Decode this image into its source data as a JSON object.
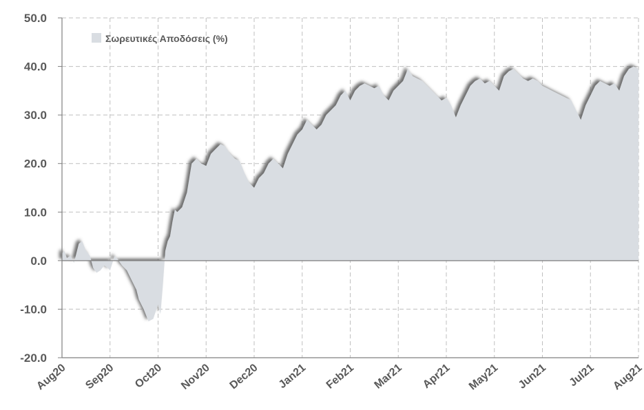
{
  "chart_data": {
    "type": "area",
    "title": "",
    "xlabel": "",
    "ylabel": "",
    "ylim": [
      -20,
      50
    ],
    "y_ticks": [
      "50.0",
      "40.0",
      "30.0",
      "20.0",
      "10.0",
      "0.0",
      "-10.0",
      "-20.0"
    ],
    "x_ticks": [
      "Aug20",
      "Sep20",
      "Oct20",
      "Nov20",
      "Dec20",
      "Jan21",
      "Feb21",
      "Mar21",
      "Apr21",
      "May21",
      "Jun21",
      "Jul21",
      "Aug21"
    ],
    "grid": true,
    "legend_position": "top-left",
    "series": [
      {
        "name": "Σωρευτικές Αποδόσεις (%)",
        "color": "#d9dde2",
        "shadow_color": "#6e6e6e",
        "x": [
          0,
          0.05,
          0.1,
          0.18,
          0.25,
          0.3,
          0.35,
          0.42,
          0.5,
          0.58,
          0.65,
          0.72,
          0.8,
          0.88,
          0.95,
          1.0,
          1.05,
          1.1,
          1.18,
          1.25,
          1.35,
          1.45,
          1.55,
          1.6,
          1.7,
          1.8,
          1.9,
          1.95,
          2.0,
          2.05,
          2.1,
          2.15,
          2.2,
          2.25,
          2.3,
          2.35,
          2.4,
          2.5,
          2.6,
          2.7,
          2.8,
          2.9,
          3.0,
          3.1,
          3.2,
          3.3,
          3.4,
          3.5,
          3.6,
          3.7,
          3.8,
          3.9,
          4.0,
          4.1,
          4.2,
          4.3,
          4.4,
          4.5,
          4.6,
          4.7,
          4.8,
          4.9,
          5.0,
          5.1,
          5.2,
          5.3,
          5.4,
          5.5,
          5.6,
          5.7,
          5.8,
          5.9,
          6.0,
          6.1,
          6.2,
          6.3,
          6.4,
          6.5,
          6.6,
          6.7,
          6.8,
          6.9,
          7.0,
          7.1,
          7.2,
          7.3,
          7.4,
          7.5,
          7.6,
          7.7,
          7.8,
          7.9,
          8.0,
          8.1,
          8.2,
          8.3,
          8.4,
          8.5,
          8.6,
          8.7,
          8.8,
          8.9,
          9.0,
          9.1,
          9.2,
          9.3,
          9.4,
          9.5,
          9.6,
          9.7,
          9.8,
          9.9,
          10.0,
          10.1,
          10.2,
          10.3,
          10.4,
          10.5,
          10.6,
          10.7,
          10.8,
          10.9,
          11.0,
          11.1,
          11.2,
          11.3,
          11.4,
          11.5,
          11.6,
          11.7,
          11.8,
          11.9,
          12.0
        ],
        "values": [
          1.5,
          2.0,
          0.5,
          1.0,
          -0.5,
          1.5,
          3.5,
          4.0,
          2.0,
          1.0,
          -1.5,
          -2.5,
          -2.0,
          -1.0,
          -1.5,
          -2.0,
          -0.5,
          1.0,
          0.0,
          -1.0,
          -2.0,
          -4.0,
          -6.0,
          -8.0,
          -10.0,
          -12.5,
          -12.0,
          -10.5,
          -9.0,
          -11.0,
          -5.0,
          2.0,
          4.0,
          5.0,
          8.0,
          10.5,
          10.0,
          11.0,
          14.0,
          20.0,
          21.0,
          20.0,
          19.5,
          22.0,
          23.0,
          24.0,
          23.5,
          22.0,
          21.0,
          20.5,
          18.0,
          16.0,
          15.0,
          17.0,
          18.0,
          20.0,
          21.0,
          20.0,
          19.0,
          22.0,
          24.0,
          26.0,
          27.0,
          29.0,
          28.0,
          27.0,
          28.0,
          30.0,
          31.0,
          32.0,
          34.0,
          35.0,
          33.0,
          35.0,
          36.0,
          36.5,
          36.0,
          35.5,
          36.0,
          34.0,
          33.0,
          35.0,
          36.0,
          37.0,
          39.5,
          38.0,
          37.5,
          37.0,
          36.0,
          35.0,
          34.0,
          33.0,
          33.5,
          32.0,
          29.5,
          32.0,
          34.0,
          36.0,
          37.0,
          37.5,
          36.5,
          37.0,
          36.0,
          35.0,
          38.0,
          39.0,
          39.5,
          38.5,
          37.5,
          37.0,
          37.5,
          37.0,
          36.0,
          35.5,
          35.0,
          34.5,
          34.0,
          33.5,
          33.0,
          31.0,
          29.0,
          32.0,
          34.0,
          36.0,
          37.0,
          36.5,
          36.0,
          36.5,
          35.0,
          38.0,
          39.5,
          40.0,
          39.5
        ]
      }
    ]
  }
}
